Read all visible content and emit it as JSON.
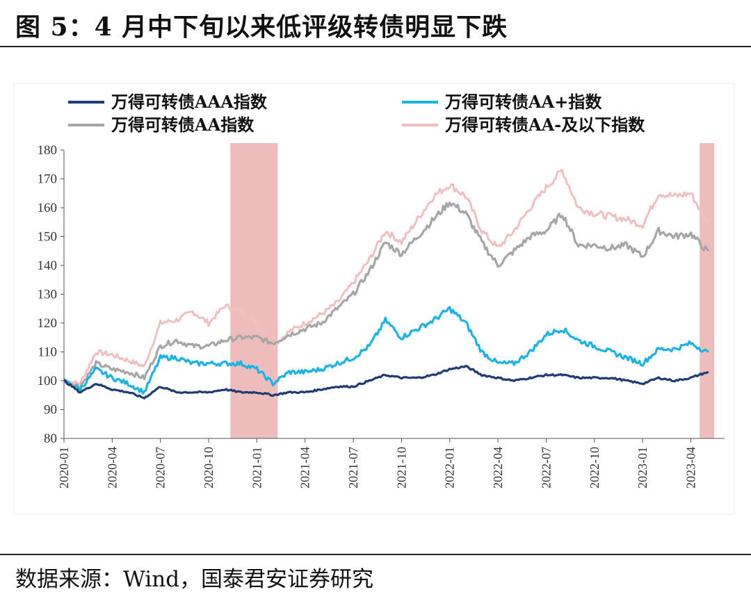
{
  "title": "图 5：4 月中下旬以来低评级转债明显下跌",
  "source": "数据来源：Wind，国泰君安证券研究",
  "chart_data": {
    "type": "line",
    "title": "",
    "xlabel": "",
    "ylabel": "",
    "ylim": [
      80,
      180
    ],
    "yticks": [
      80,
      90,
      100,
      110,
      120,
      130,
      140,
      150,
      160,
      170,
      180
    ],
    "xticks": [
      "2020-01",
      "2020-04",
      "2020-07",
      "2020-10",
      "2021-01",
      "2021-04",
      "2021-07",
      "2021-10",
      "2022-01",
      "2022-04",
      "2022-07",
      "2022-10",
      "2023-01",
      "2023-04"
    ],
    "grid": false,
    "legend_position": "top",
    "shaded_periods": [
      {
        "start": "2020-11",
        "end": "2021-02"
      },
      {
        "start": "2023-04",
        "end": "2023-05"
      }
    ],
    "series": [
      {
        "name": "万得可转债AAA指数",
        "color": "#1f3b73",
        "x": [
          "2020-01",
          "2020-02",
          "2020-03",
          "2020-04",
          "2020-05",
          "2020-06",
          "2020-07",
          "2020-08",
          "2020-09",
          "2020-10",
          "2020-11",
          "2020-12",
          "2021-01",
          "2021-02",
          "2021-03",
          "2021-04",
          "2021-05",
          "2021-06",
          "2021-07",
          "2021-08",
          "2021-09",
          "2021-10",
          "2021-11",
          "2021-12",
          "2022-01",
          "2022-02",
          "2022-03",
          "2022-04",
          "2022-05",
          "2022-06",
          "2022-07",
          "2022-08",
          "2022-09",
          "2022-10",
          "2022-11",
          "2022-12",
          "2023-01",
          "2023-02",
          "2023-03",
          "2023-04",
          "2023-05"
        ],
        "values": [
          100,
          96,
          99,
          97,
          96,
          94,
          98,
          96,
          96,
          96,
          97,
          96,
          96,
          95,
          96,
          96,
          97,
          98,
          98,
          100,
          102,
          101,
          101,
          102,
          104,
          105,
          102,
          101,
          100,
          101,
          102,
          102,
          101,
          101,
          101,
          100,
          99,
          101,
          100,
          101,
          103
        ]
      },
      {
        "name": "万得可转债AA+指数",
        "color": "#19b3e6",
        "x": [
          "2020-01",
          "2020-02",
          "2020-03",
          "2020-04",
          "2020-05",
          "2020-06",
          "2020-07",
          "2020-08",
          "2020-09",
          "2020-10",
          "2020-11",
          "2020-12",
          "2021-01",
          "2021-02",
          "2021-03",
          "2021-04",
          "2021-05",
          "2021-06",
          "2021-07",
          "2021-08",
          "2021-09",
          "2021-10",
          "2021-11",
          "2021-12",
          "2022-01",
          "2022-02",
          "2022-03",
          "2022-04",
          "2022-05",
          "2022-06",
          "2022-07",
          "2022-08",
          "2022-09",
          "2022-10",
          "2022-11",
          "2022-12",
          "2023-01",
          "2023-02",
          "2023-03",
          "2023-04",
          "2023-05"
        ],
        "values": [
          100,
          97,
          104,
          101,
          99,
          96,
          108,
          108,
          106,
          106,
          106,
          106,
          104,
          99,
          103,
          103,
          104,
          106,
          108,
          112,
          121,
          115,
          118,
          121,
          125,
          120,
          110,
          106,
          106,
          110,
          116,
          118,
          114,
          112,
          110,
          108,
          106,
          111,
          111,
          113,
          110
        ]
      },
      {
        "name": "万得可转债AA指数",
        "color": "#a6a6a6",
        "x": [
          "2020-01",
          "2020-02",
          "2020-03",
          "2020-04",
          "2020-05",
          "2020-06",
          "2020-07",
          "2020-08",
          "2020-09",
          "2020-10",
          "2020-11",
          "2020-12",
          "2021-01",
          "2021-02",
          "2021-03",
          "2021-04",
          "2021-05",
          "2021-06",
          "2021-07",
          "2021-08",
          "2021-09",
          "2021-10",
          "2021-11",
          "2021-12",
          "2022-01",
          "2022-02",
          "2022-03",
          "2022-04",
          "2022-05",
          "2022-06",
          "2022-07",
          "2022-08",
          "2022-09",
          "2022-10",
          "2022-11",
          "2022-12",
          "2023-01",
          "2023-02",
          "2023-03",
          "2023-04",
          "2023-05"
        ],
        "values": [
          100,
          98,
          106,
          104,
          103,
          101,
          112,
          114,
          112,
          112,
          114,
          115,
          115,
          113,
          116,
          118,
          120,
          125,
          130,
          138,
          148,
          144,
          150,
          156,
          162,
          158,
          148,
          140,
          145,
          150,
          152,
          158,
          147,
          147,
          146,
          147,
          143,
          152,
          150,
          151,
          145
        ]
      },
      {
        "name": "万得可转债AA-及以下指数",
        "color": "#f0c0c0",
        "x": [
          "2020-01",
          "2020-02",
          "2020-03",
          "2020-04",
          "2020-05",
          "2020-06",
          "2020-07",
          "2020-08",
          "2020-09",
          "2020-10",
          "2020-11",
          "2020-12",
          "2021-01",
          "2021-02",
          "2021-03",
          "2021-04",
          "2021-05",
          "2021-06",
          "2021-07",
          "2021-08",
          "2021-09",
          "2021-10",
          "2021-11",
          "2021-12",
          "2022-01",
          "2022-02",
          "2022-03",
          "2022-04",
          "2022-05",
          "2022-06",
          "2022-07",
          "2022-08",
          "2022-09",
          "2022-10",
          "2022-11",
          "2022-12",
          "2023-01",
          "2023-02",
          "2023-03",
          "2023-04",
          "2023-05"
        ],
        "values": [
          100,
          99,
          110,
          109,
          107,
          105,
          120,
          121,
          124,
          120,
          126,
          124,
          120,
          112,
          117,
          120,
          123,
          127,
          134,
          142,
          152,
          148,
          156,
          164,
          168,
          164,
          152,
          146,
          152,
          160,
          167,
          173,
          160,
          158,
          157,
          156,
          154,
          165,
          164,
          165,
          155
        ]
      }
    ]
  }
}
